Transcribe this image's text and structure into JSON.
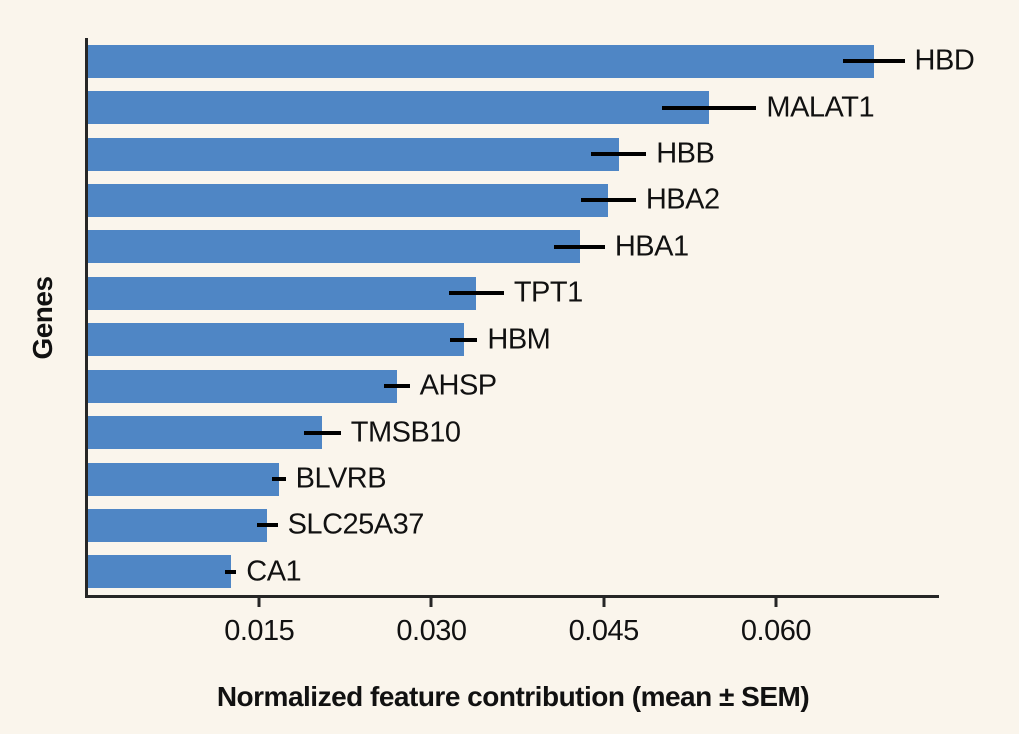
{
  "figure": {
    "background_color": "#faf5ec",
    "bar_color": "#4f86c5",
    "spine_color": "#262626",
    "error_bar_color": "#000000",
    "text_color": "#111111"
  },
  "chart_data": {
    "type": "bar",
    "orientation": "horizontal",
    "title": "",
    "xlabel": "Normalized feature contribution (mean ± SEM)",
    "ylabel": "Genes",
    "categories": [
      "HBD",
      "MALAT1",
      "HBB",
      "HBA2",
      "HBA1",
      "TPT1",
      "HBM",
      "AHSP",
      "TMSB10",
      "BLVRB",
      "SLC25A37",
      "CA1"
    ],
    "series": [
      {
        "name": "mean",
        "values": [
          0.0685,
          0.0542,
          0.0463,
          0.0454,
          0.0429,
          0.0339,
          0.0328,
          0.027,
          0.0205,
          0.0167,
          0.0157,
          0.0125
        ]
      },
      {
        "name": "sem",
        "values": [
          0.0027,
          0.0041,
          0.0024,
          0.0024,
          0.0022,
          0.0024,
          0.0012,
          0.0011,
          0.0016,
          0.0006,
          0.0009,
          0.0005
        ]
      }
    ],
    "xlim": [
      0,
      0.0742
    ],
    "xticks": [
      0.015,
      0.03,
      0.045,
      0.06
    ],
    "xtick_labels": [
      "0.015",
      "0.030",
      "0.045",
      "0.060"
    ],
    "grid": false,
    "legend": null,
    "error_bars": "horizontal line at bar end, no caps",
    "bar_label_position": "right of error bar"
  }
}
